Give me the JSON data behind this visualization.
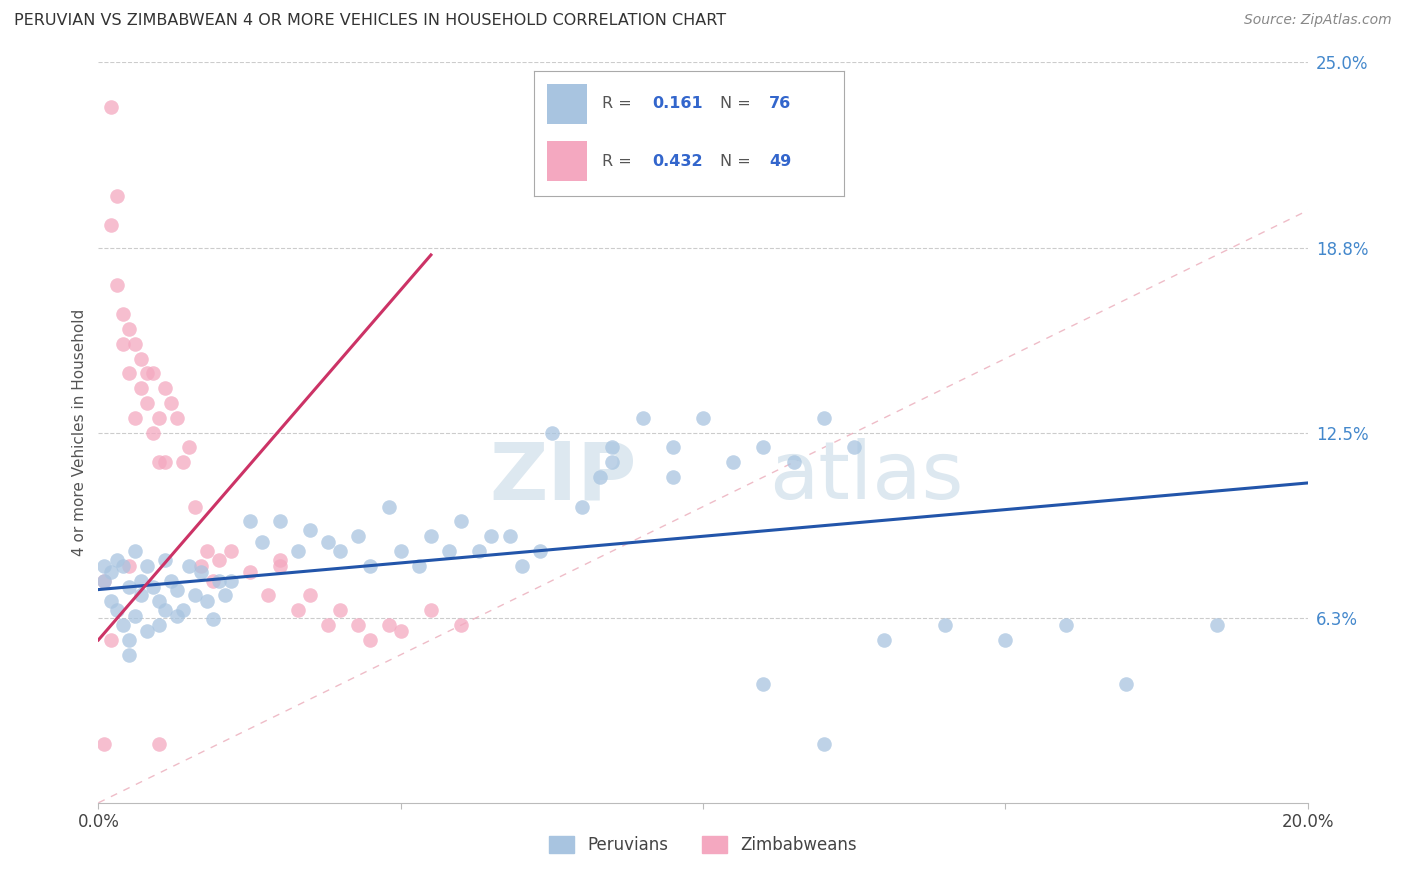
{
  "title": "PERUVIAN VS ZIMBABWEAN 4 OR MORE VEHICLES IN HOUSEHOLD CORRELATION CHART",
  "source": "Source: ZipAtlas.com",
  "ylabel": "4 or more Vehicles in Household",
  "watermark_zip": "ZIP",
  "watermark_atlas": "atlas",
  "xlim": [
    0.0,
    0.2
  ],
  "ylim": [
    0.0,
    0.25
  ],
  "ytick_positions": [
    0.0625,
    0.125,
    0.1875,
    0.25
  ],
  "ytick_labels": [
    "6.3%",
    "12.5%",
    "18.8%",
    "25.0%"
  ],
  "blue_R": "0.161",
  "blue_N": "76",
  "pink_R": "0.432",
  "pink_N": "49",
  "blue_color": "#a8c4e0",
  "pink_color": "#f4a8c0",
  "blue_line_color": "#2255aa",
  "pink_line_color": "#cc3366",
  "diag_color": "#e8a0b0",
  "legend_label_blue": "Peruvians",
  "legend_label_pink": "Zimbabweans",
  "blue_trend_x0": 0.0,
  "blue_trend_y0": 0.072,
  "blue_trend_x1": 0.2,
  "blue_trend_y1": 0.108,
  "pink_trend_x0": 0.0,
  "pink_trend_y0": 0.055,
  "pink_trend_x1": 0.055,
  "pink_trend_y1": 0.185,
  "peruvian_x": [
    0.001,
    0.001,
    0.002,
    0.002,
    0.003,
    0.003,
    0.004,
    0.004,
    0.005,
    0.005,
    0.005,
    0.006,
    0.006,
    0.007,
    0.007,
    0.008,
    0.008,
    0.009,
    0.01,
    0.01,
    0.011,
    0.011,
    0.012,
    0.013,
    0.013,
    0.014,
    0.015,
    0.016,
    0.017,
    0.018,
    0.019,
    0.02,
    0.021,
    0.022,
    0.025,
    0.027,
    0.03,
    0.033,
    0.035,
    0.038,
    0.04,
    0.043,
    0.045,
    0.048,
    0.05,
    0.053,
    0.055,
    0.058,
    0.06,
    0.063,
    0.065,
    0.068,
    0.07,
    0.073,
    0.075,
    0.08,
    0.083,
    0.085,
    0.09,
    0.095,
    0.1,
    0.105,
    0.11,
    0.115,
    0.12,
    0.125,
    0.13,
    0.14,
    0.15,
    0.16,
    0.17,
    0.185,
    0.11,
    0.12,
    0.095,
    0.085
  ],
  "peruvian_y": [
    0.08,
    0.075,
    0.078,
    0.068,
    0.082,
    0.065,
    0.08,
    0.06,
    0.073,
    0.055,
    0.05,
    0.085,
    0.063,
    0.075,
    0.07,
    0.08,
    0.058,
    0.073,
    0.068,
    0.06,
    0.082,
    0.065,
    0.075,
    0.072,
    0.063,
    0.065,
    0.08,
    0.07,
    0.078,
    0.068,
    0.062,
    0.075,
    0.07,
    0.075,
    0.095,
    0.088,
    0.095,
    0.085,
    0.092,
    0.088,
    0.085,
    0.09,
    0.08,
    0.1,
    0.085,
    0.08,
    0.09,
    0.085,
    0.095,
    0.085,
    0.09,
    0.09,
    0.08,
    0.085,
    0.125,
    0.1,
    0.11,
    0.12,
    0.13,
    0.12,
    0.13,
    0.115,
    0.12,
    0.115,
    0.13,
    0.12,
    0.055,
    0.06,
    0.055,
    0.06,
    0.04,
    0.06,
    0.04,
    0.02,
    0.11,
    0.115
  ],
  "zimbabwean_x": [
    0.001,
    0.001,
    0.002,
    0.002,
    0.002,
    0.003,
    0.003,
    0.004,
    0.004,
    0.005,
    0.005,
    0.005,
    0.006,
    0.006,
    0.007,
    0.007,
    0.008,
    0.008,
    0.009,
    0.009,
    0.01,
    0.01,
    0.011,
    0.011,
    0.012,
    0.013,
    0.014,
    0.015,
    0.016,
    0.017,
    0.018,
    0.019,
    0.02,
    0.022,
    0.025,
    0.028,
    0.03,
    0.033,
    0.035,
    0.038,
    0.04,
    0.043,
    0.045,
    0.048,
    0.05,
    0.055,
    0.06,
    0.03,
    0.01
  ],
  "zimbabwean_y": [
    0.075,
    0.02,
    0.235,
    0.195,
    0.055,
    0.205,
    0.175,
    0.165,
    0.155,
    0.16,
    0.145,
    0.08,
    0.155,
    0.13,
    0.15,
    0.14,
    0.145,
    0.135,
    0.145,
    0.125,
    0.13,
    0.115,
    0.14,
    0.115,
    0.135,
    0.13,
    0.115,
    0.12,
    0.1,
    0.08,
    0.085,
    0.075,
    0.082,
    0.085,
    0.078,
    0.07,
    0.082,
    0.065,
    0.07,
    0.06,
    0.065,
    0.06,
    0.055,
    0.06,
    0.058,
    0.065,
    0.06,
    0.08,
    0.02
  ]
}
